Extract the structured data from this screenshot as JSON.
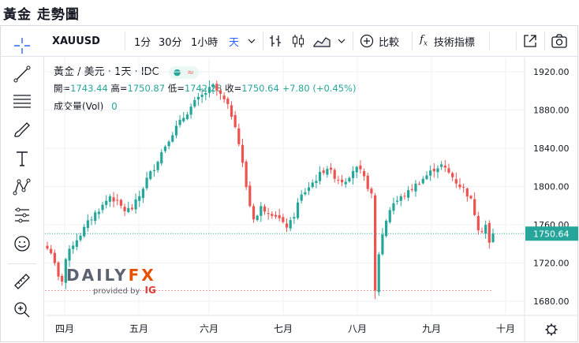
{
  "page": {
    "title": "黃金 走勢圖"
  },
  "toolbar": {
    "symbol": "XAUUSD",
    "intervals": [
      "1分",
      "30分",
      "1小時",
      "天"
    ],
    "compare_label": "比較",
    "indicators_label": "技術指標"
  },
  "legend": {
    "title": "黃金 / 美元 · 1天 · IDC",
    "open_label": "開=",
    "open": "1743.44",
    "high_label": "高=",
    "high": "1750.87",
    "low_label": "低=",
    "low": "1742.28",
    "close_label": "收=",
    "close": "1750.64",
    "change": "+7.80 (+0.45%)",
    "volume_label": "成交量(Vol)",
    "volume": "0"
  },
  "watermark": {
    "brand_a": "DAILY",
    "brand_b": "FX",
    "provided": "provided by",
    "ig": "IG"
  },
  "colors": {
    "up": "#26a69a",
    "down": "#ef5350",
    "grid": "#eef0f3",
    "accent": "#2962ff",
    "current_line": "#26a69a",
    "dashed_line": "#ef9a9a"
  },
  "icons": {
    "sidebar": [
      "crosshair-icon",
      "trend-line-icon",
      "fib-icon",
      "brush-icon",
      "text-icon",
      "pattern-icon",
      "prediction-icon",
      "emoji-icon",
      "ruler-icon",
      "zoom-icon"
    ],
    "top_right": [
      "fullscreen-icon",
      "camera-icon"
    ]
  },
  "chart_data": {
    "type": "candlestick",
    "ylim": [
      1665,
      1935
    ],
    "y_ticks": [
      "1920.00",
      "1880.00",
      "1840.00",
      "1800.00",
      "1760.00",
      "1720.00",
      "1680.00"
    ],
    "x_labels": [
      "四月",
      "五月",
      "六月",
      "七月",
      "八月",
      "九月",
      "十月"
    ],
    "last_price_label": "1750.64",
    "last_price": 1750.64,
    "dashed_level": 1691,
    "close_path": [
      [
        0,
        1735
      ],
      [
        3,
        1730
      ],
      [
        5,
        1705
      ],
      [
        8,
        1702
      ],
      [
        10,
        1724
      ],
      [
        14,
        1740
      ],
      [
        18,
        1750
      ],
      [
        22,
        1762
      ],
      [
        26,
        1772
      ],
      [
        30,
        1780
      ],
      [
        34,
        1790
      ],
      [
        38,
        1783
      ],
      [
        42,
        1775
      ],
      [
        46,
        1777
      ],
      [
        50,
        1790
      ],
      [
        54,
        1808
      ],
      [
        58,
        1820
      ],
      [
        62,
        1836
      ],
      [
        66,
        1850
      ],
      [
        70,
        1862
      ],
      [
        73,
        1870
      ],
      [
        76,
        1878
      ],
      [
        80,
        1888
      ],
      [
        84,
        1895
      ],
      [
        87,
        1900
      ],
      [
        90,
        1905
      ],
      [
        93,
        1898
      ],
      [
        96,
        1890
      ],
      [
        99,
        1880
      ],
      [
        102,
        1865
      ],
      [
        105,
        1835
      ],
      [
        108,
        1800
      ],
      [
        111,
        1770
      ],
      [
        113,
        1765
      ],
      [
        116,
        1778
      ],
      [
        119,
        1775
      ],
      [
        122,
        1772
      ],
      [
        125,
        1769
      ],
      [
        128,
        1760
      ],
      [
        131,
        1758
      ],
      [
        134,
        1770
      ],
      [
        137,
        1788
      ],
      [
        140,
        1795
      ],
      [
        143,
        1802
      ],
      [
        146,
        1808
      ],
      [
        149,
        1815
      ],
      [
        152,
        1820
      ],
      [
        155,
        1812
      ],
      [
        158,
        1808
      ],
      [
        161,
        1805
      ],
      [
        164,
        1812
      ],
      [
        167,
        1820
      ],
      [
        170,
        1815
      ],
      [
        173,
        1805
      ],
      [
        176,
        1790
      ],
      [
        177,
        1745
      ],
      [
        178,
        1690
      ],
      [
        179,
        1718
      ],
      [
        181,
        1742
      ],
      [
        184,
        1765
      ],
      [
        187,
        1782
      ],
      [
        190,
        1785
      ],
      [
        193,
        1790
      ],
      [
        196,
        1794
      ],
      [
        199,
        1800
      ],
      [
        202,
        1805
      ],
      [
        205,
        1810
      ],
      [
        208,
        1815
      ],
      [
        211,
        1820
      ],
      [
        214,
        1822
      ],
      [
        217,
        1816
      ],
      [
        220,
        1810
      ],
      [
        223,
        1802
      ],
      [
        226,
        1798
      ],
      [
        228,
        1792
      ],
      [
        231,
        1782
      ],
      [
        233,
        1762
      ],
      [
        235,
        1752
      ],
      [
        238,
        1760
      ],
      [
        240,
        1740
      ],
      [
        242,
        1745
      ],
      [
        243,
        1750.64
      ]
    ]
  }
}
